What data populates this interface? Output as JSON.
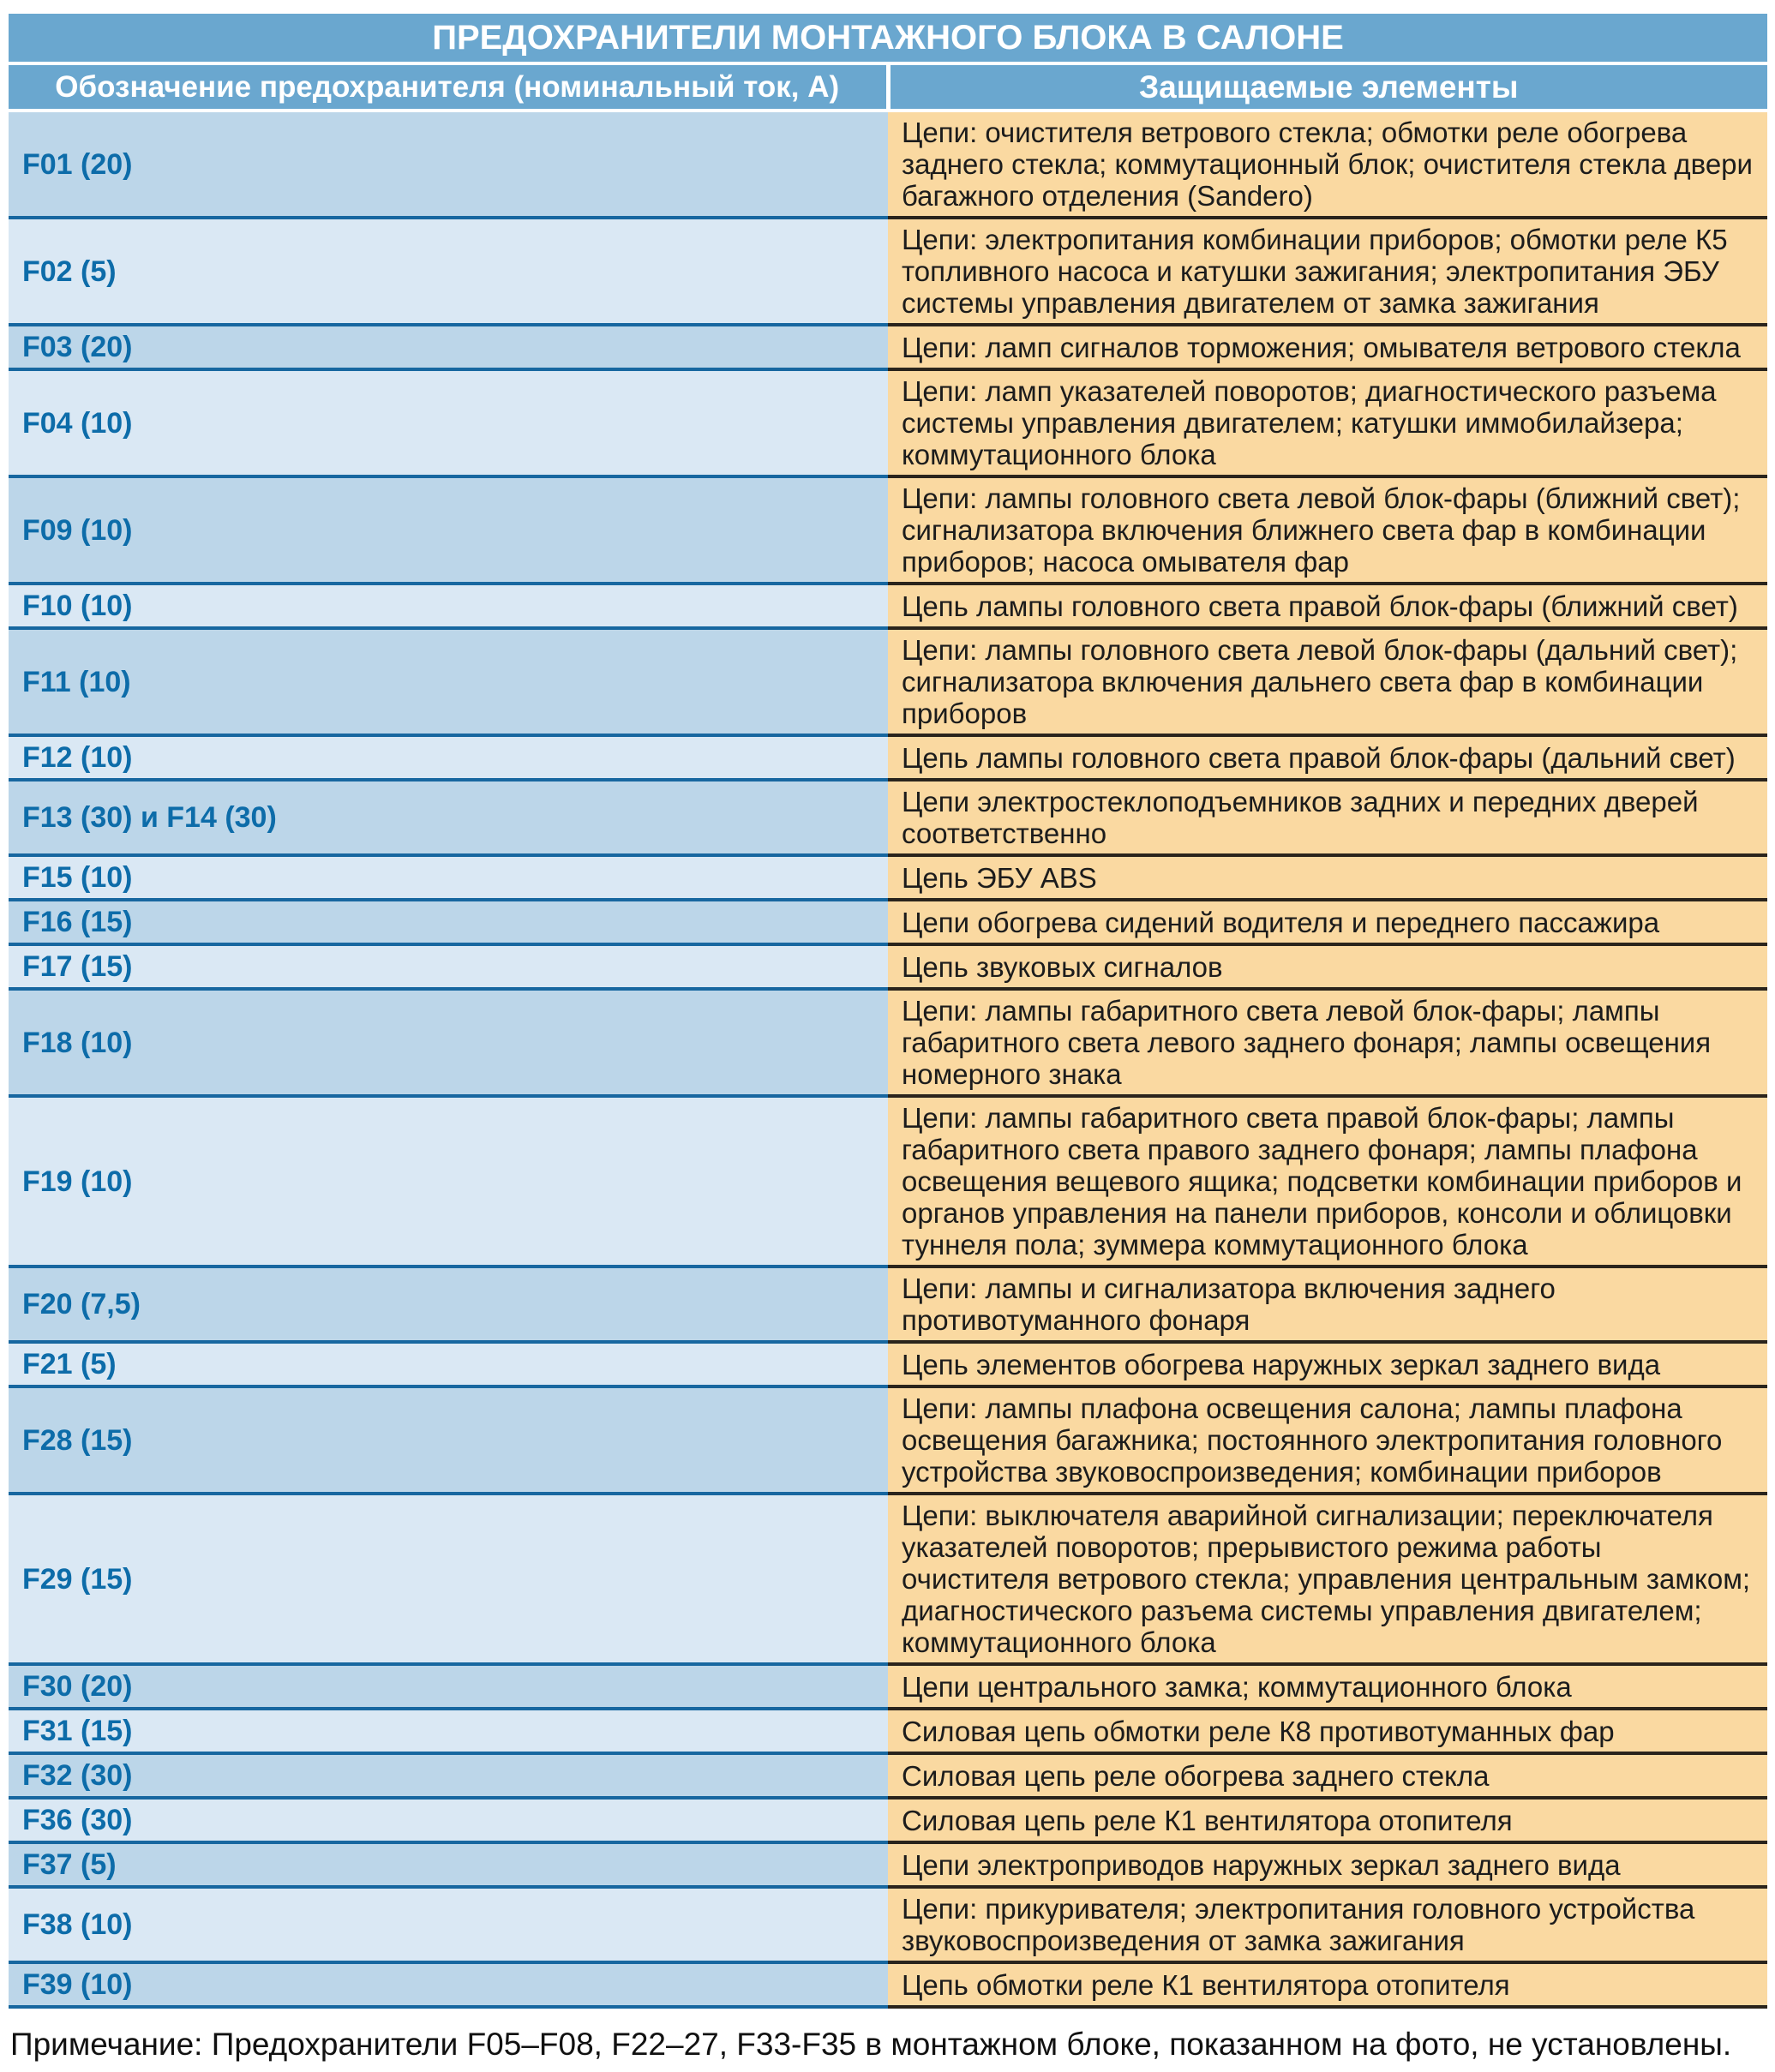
{
  "title": "ПРЕДОХРАНИТЕЛИ МОНТАЖНОГО БЛОКА В САЛОНЕ",
  "columns": {
    "fuse": "Обозначение предохранителя (номинальный ток, А)",
    "protected": "Защищаемые элементы"
  },
  "rows": [
    {
      "fuse": "F01 (20)",
      "protected": "Цепи: очистителя ветрового стекла; обмотки реле обогрева заднего стекла; коммутационный блок; очистителя стекла двери багажного отделения (Sandero)"
    },
    {
      "fuse": "F02 (5)",
      "protected": "Цепи: электропитания комбинации приборов; обмотки реле К5 топливного насоса и катушки зажигания; электропитания ЭБУ системы управления двигателем от замка зажигания"
    },
    {
      "fuse": "F03 (20)",
      "protected": "Цепи: ламп сигналов торможения; омывателя ветрового стекла"
    },
    {
      "fuse": "F04 (10)",
      "protected": "Цепи: ламп указателей поворотов; диагностического разъема системы управления двигателем; катушки иммобилайзера; коммутационного блока"
    },
    {
      "fuse": "F09 (10)",
      "protected": "Цепи: лампы головного света левой блок-фары (ближний свет); сигнализатора включения ближнего света фар в комбинации приборов; насоса омывателя фар"
    },
    {
      "fuse": "F10 (10)",
      "protected": "Цепь лампы головного света правой блок-фары (ближний свет)"
    },
    {
      "fuse": "F11 (10)",
      "protected": "Цепи: лампы головного света левой блок-фары (дальний свет); сигнализатора включения дальнего света фар в комбинации приборов"
    },
    {
      "fuse": "F12 (10)",
      "protected": "Цепь лампы головного света правой блок-фары (дальний свет)"
    },
    {
      "fuse": "F13 (30) и F14 (30)",
      "protected": "Цепи электростеклоподъемников задних и передних дверей соответственно"
    },
    {
      "fuse": "F15 (10)",
      "protected": "Цепь ЭБУ ABS"
    },
    {
      "fuse": "F16 (15)",
      "protected": "Цепи обогрева сидений водителя и переднего пассажира"
    },
    {
      "fuse": "F17 (15)",
      "protected": "Цепь звуковых сигналов"
    },
    {
      "fuse": "F18 (10)",
      "protected": "Цепи: лампы габаритного света левой блок-фары; лампы габаритного света левого заднего фонаря; лампы освещения номерного знака"
    },
    {
      "fuse": "F19 (10)",
      "protected": "Цепи: лампы габаритного света правой блок-фары; лампы габаритного света правого заднего фонаря; лампы плафона освещения вещевого ящика; подсветки комбинации приборов и органов управления на панели приборов, консоли и облицовки туннеля пола; зуммера коммутационного блока"
    },
    {
      "fuse": "F20 (7,5)",
      "protected": "Цепи: лампы и сигнализатора включения заднего противотуманного фонаря"
    },
    {
      "fuse": "F21 (5)",
      "protected": "Цепь элементов обогрева наружных зеркал заднего вида"
    },
    {
      "fuse": "F28 (15)",
      "protected": "Цепи: лампы плафона освещения салона; лампы плафона освещения багажника; постоянного электропитания головного устройства звуковоспроизведения; комбинации приборов"
    },
    {
      "fuse": "F29 (15)",
      "protected": "Цепи: выключателя аварийной сигнализации; переключателя указателей поворотов; прерывистого режима работы очистителя ветрового стекла; управления центральным замком; диагностического разъема системы управления двигателем; коммутационного блока"
    },
    {
      "fuse": "F30 (20)",
      "protected": "Цепи центрального замка; коммутационного блока"
    },
    {
      "fuse": "F31 (15)",
      "protected": "Силовая цепь обмотки реле К8 противотуманных фар"
    },
    {
      "fuse": "F32 (30)",
      "protected": "Силовая цепь реле обогрева заднего стекла"
    },
    {
      "fuse": "F36 (30)",
      "protected": "Силовая цепь реле К1 вентилятора отопителя"
    },
    {
      "fuse": "F37 (5)",
      "protected": "Цепи электроприводов наружных зеркал заднего вида"
    },
    {
      "fuse": "F38 (10)",
      "protected": "Цепи: прикуривателя; электропитания головного устройства звуковоспроизведения от замка зажигания"
    },
    {
      "fuse": "F39 (10)",
      "protected": "Цепь обмотки реле К1 вентилятора отопителя"
    }
  ],
  "note": "Примечание: Предохранители F05–F08, F22–27, F33-F35 в монтажном блоке, показанном на фото, не установлены.",
  "colors": {
    "header_bg": "#6AA7CF",
    "row_alt_dark": "#BCD6E9",
    "row_alt_light": "#DAE8F4",
    "desc_bg": "#FAD9A1",
    "fuse_text": "#0D6CA9",
    "border_blue": "#1767A0",
    "border_dark": "#2A241C"
  }
}
